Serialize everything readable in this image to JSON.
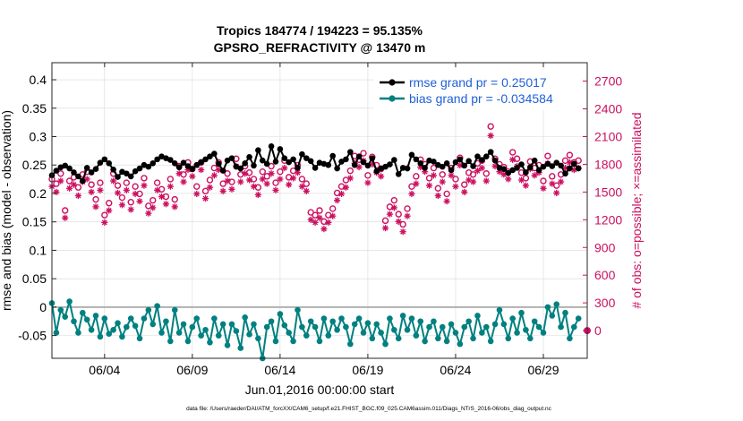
{
  "chart_data": {
    "type": "line",
    "title_line1": "Tropics 184774 / 194223 = 95.135%",
    "title_line2": "GPSRO_REFRACTIVITY @ 13470 m",
    "xlabel": "Jun.01,2016 00:00:00 start",
    "ylabel_left": "rmse and bias (model - observation)",
    "ylabel_right": "# of obs: o=possible; ×=assimilated",
    "footer": "data file: /Users/raeder/DAI/ATM_forcXX/CAM6_setup/f.e21.FHIST_BGC.f09_025.CAM6assim.011/Diags_NTrS_2016-06/obs_diag_output.nc",
    "xlim": [
      1,
      31.5
    ],
    "ylim_left": [
      -0.09,
      0.43
    ],
    "ylim_right": [
      -300,
      2900
    ],
    "x_ticks": [
      {
        "value": 4,
        "label": "06/04"
      },
      {
        "value": 9,
        "label": "06/09"
      },
      {
        "value": 14,
        "label": "06/14"
      },
      {
        "value": 19,
        "label": "06/19"
      },
      {
        "value": 24,
        "label": "06/24"
      },
      {
        "value": 29,
        "label": "06/29"
      }
    ],
    "left_ticks": [
      {
        "value": 0.4,
        "label": "0.4"
      },
      {
        "value": 0.35,
        "label": "0.35"
      },
      {
        "value": 0.3,
        "label": "0.3"
      },
      {
        "value": 0.25,
        "label": "0.25"
      },
      {
        "value": 0.2,
        "label": "0.2"
      },
      {
        "value": 0.15,
        "label": "0.15"
      },
      {
        "value": 0.1,
        "label": "0.1"
      },
      {
        "value": 0.05,
        "label": "0.05"
      },
      {
        "value": 0,
        "label": "0"
      },
      {
        "value": -0.05,
        "label": "-0.05"
      }
    ],
    "right_ticks": [
      {
        "value": 2700,
        "label": "2700"
      },
      {
        "value": 2400,
        "label": "2400"
      },
      {
        "value": 2100,
        "label": "2100"
      },
      {
        "value": 1800,
        "label": "1800"
      },
      {
        "value": 1500,
        "label": "1500"
      },
      {
        "value": 1200,
        "label": "1200"
      },
      {
        "value": 900,
        "label": "900"
      },
      {
        "value": 600,
        "label": "600"
      },
      {
        "value": 300,
        "label": "300"
      },
      {
        "value": 0,
        "label": "0"
      }
    ],
    "rmse_series": {
      "name": "rmse grand pr = 0.25017",
      "color": "#000000",
      "x": [
        1.0,
        1.25,
        1.5,
        1.75,
        2.0,
        2.25,
        2.5,
        2.75,
        3.0,
        3.25,
        3.5,
        3.75,
        4.0,
        4.25,
        4.5,
        4.75,
        5.0,
        5.25,
        5.5,
        5.75,
        6.0,
        6.25,
        6.5,
        6.75,
        7.0,
        7.25,
        7.5,
        7.75,
        8.0,
        8.25,
        8.5,
        8.75,
        9.0,
        9.25,
        9.5,
        9.75,
        10.0,
        10.25,
        10.5,
        10.75,
        11.0,
        11.25,
        11.5,
        11.75,
        12.0,
        12.25,
        12.5,
        12.75,
        13.0,
        13.25,
        13.5,
        13.75,
        14.0,
        14.25,
        14.5,
        14.75,
        15.0,
        15.25,
        15.5,
        15.75,
        16.0,
        16.25,
        16.5,
        16.75,
        17.0,
        17.25,
        17.5,
        17.75,
        18.0,
        18.25,
        18.5,
        18.75,
        19.0,
        19.25,
        19.5,
        19.75,
        20.0,
        20.25,
        20.5,
        20.75,
        21.0,
        21.25,
        21.5,
        21.75,
        22.0,
        22.25,
        22.5,
        22.75,
        23.0,
        23.25,
        23.5,
        23.75,
        24.0,
        24.25,
        24.5,
        24.75,
        25.0,
        25.25,
        25.5,
        25.75,
        26.0,
        26.25,
        26.5,
        26.75,
        27.0,
        27.25,
        27.5,
        27.75,
        28.0,
        28.25,
        28.5,
        28.75,
        29.0,
        29.25,
        29.5,
        29.75,
        30.0,
        30.25,
        30.5,
        30.75,
        31.0
      ],
      "values": [
        0.232,
        0.24,
        0.246,
        0.249,
        0.244,
        0.237,
        0.23,
        0.222,
        0.245,
        0.237,
        0.243,
        0.254,
        0.26,
        0.253,
        0.242,
        0.229,
        0.238,
        0.235,
        0.23,
        0.239,
        0.244,
        0.25,
        0.247,
        0.253,
        0.26,
        0.265,
        0.262,
        0.259,
        0.253,
        0.246,
        0.254,
        0.248,
        0.243,
        0.25,
        0.255,
        0.26,
        0.265,
        0.27,
        0.252,
        0.24,
        0.258,
        0.262,
        0.247,
        0.244,
        0.253,
        0.264,
        0.249,
        0.276,
        0.258,
        0.252,
        0.283,
        0.256,
        0.278,
        0.262,
        0.255,
        0.26,
        0.245,
        0.269,
        0.262,
        0.257,
        0.245,
        0.254,
        0.252,
        0.25,
        0.266,
        0.244,
        0.256,
        0.26,
        0.273,
        0.25,
        0.265,
        0.255,
        0.249,
        0.262,
        0.239,
        0.244,
        0.247,
        0.251,
        0.259,
        0.234,
        0.245,
        0.244,
        0.268,
        0.26,
        0.253,
        0.245,
        0.258,
        0.256,
        0.25,
        0.247,
        0.253,
        0.241,
        0.255,
        0.26,
        0.249,
        0.257,
        0.248,
        0.265,
        0.259,
        0.265,
        0.273,
        0.258,
        0.245,
        0.243,
        0.236,
        0.241,
        0.245,
        0.251,
        0.237,
        0.246,
        0.258,
        0.241,
        0.247,
        0.252,
        0.248,
        0.254,
        0.249,
        0.235,
        0.244,
        0.252,
        0.244
      ]
    },
    "bias_series": {
      "name": "bias grand pr = -0.034584",
      "color": "#008080",
      "x": [
        1.0,
        1.25,
        1.5,
        1.75,
        2.0,
        2.25,
        2.5,
        2.75,
        3.0,
        3.25,
        3.5,
        3.75,
        4.0,
        4.25,
        4.5,
        4.75,
        5.0,
        5.25,
        5.5,
        5.75,
        6.0,
        6.25,
        6.5,
        6.75,
        7.0,
        7.25,
        7.5,
        7.75,
        8.0,
        8.25,
        8.5,
        8.75,
        9.0,
        9.25,
        9.5,
        9.75,
        10.0,
        10.25,
        10.5,
        10.75,
        11.0,
        11.25,
        11.5,
        11.75,
        12.0,
        12.25,
        12.5,
        12.75,
        13.0,
        13.25,
        13.5,
        13.75,
        14.0,
        14.25,
        14.5,
        14.75,
        15.0,
        15.25,
        15.5,
        15.75,
        16.0,
        16.25,
        16.5,
        16.75,
        17.0,
        17.25,
        17.5,
        17.75,
        18.0,
        18.25,
        18.5,
        18.75,
        19.0,
        19.25,
        19.5,
        19.75,
        20.0,
        20.25,
        20.5,
        20.75,
        21.0,
        21.25,
        21.5,
        21.75,
        22.0,
        22.25,
        22.5,
        22.75,
        23.0,
        23.25,
        23.5,
        23.75,
        24.0,
        24.25,
        24.5,
        24.75,
        25.0,
        25.25,
        25.5,
        25.75,
        26.0,
        26.25,
        26.5,
        26.75,
        27.0,
        27.25,
        27.5,
        27.75,
        28.0,
        28.25,
        28.5,
        28.75,
        29.0,
        29.25,
        29.5,
        29.75,
        30.0,
        30.25,
        30.5,
        30.75,
        31.0
      ],
      "values": [
        0.007,
        -0.045,
        -0.005,
        -0.017,
        0.01,
        -0.025,
        -0.045,
        -0.01,
        -0.022,
        -0.04,
        -0.015,
        -0.052,
        -0.02,
        -0.047,
        -0.04,
        -0.028,
        -0.052,
        -0.035,
        -0.02,
        -0.033,
        -0.055,
        -0.02,
        -0.005,
        -0.03,
        0.002,
        -0.045,
        -0.025,
        -0.06,
        -0.005,
        -0.045,
        -0.03,
        -0.06,
        -0.035,
        -0.02,
        -0.05,
        -0.04,
        -0.062,
        -0.02,
        -0.05,
        -0.03,
        -0.067,
        -0.03,
        -0.042,
        -0.072,
        -0.018,
        -0.048,
        -0.03,
        -0.055,
        -0.09,
        -0.035,
        -0.025,
        -0.06,
        -0.012,
        -0.032,
        -0.045,
        -0.06,
        -0.005,
        -0.035,
        -0.05,
        -0.025,
        -0.035,
        -0.06,
        -0.02,
        -0.05,
        -0.025,
        -0.04,
        -0.02,
        -0.035,
        -0.065,
        -0.03,
        -0.02,
        -0.045,
        -0.028,
        -0.055,
        -0.03,
        -0.045,
        -0.065,
        -0.02,
        -0.04,
        -0.055,
        -0.015,
        -0.04,
        -0.02,
        -0.05,
        -0.025,
        -0.06,
        -0.035,
        -0.025,
        -0.055,
        -0.035,
        -0.06,
        -0.03,
        -0.045,
        -0.065,
        -0.035,
        -0.025,
        -0.055,
        -0.015,
        -0.045,
        -0.035,
        -0.06,
        -0.03,
        -0.005,
        -0.03,
        -0.055,
        -0.02,
        -0.045,
        -0.01,
        -0.04,
        -0.055,
        -0.025,
        -0.035,
        -0.045,
        0.0,
        -0.015,
        0.005,
        -0.035,
        -0.01,
        -0.055,
        -0.035,
        -0.02
      ]
    },
    "possible_series": {
      "name": "possible",
      "marker": "o",
      "color": "#cc1060",
      "x": [
        1.0,
        1.25,
        1.5,
        1.75,
        2.0,
        2.25,
        2.5,
        2.75,
        3.0,
        3.25,
        3.5,
        3.75,
        4.0,
        4.25,
        4.5,
        4.75,
        5.0,
        5.25,
        5.5,
        5.75,
        6.0,
        6.25,
        6.5,
        6.75,
        7.0,
        7.25,
        7.5,
        7.75,
        8.0,
        8.25,
        8.5,
        8.75,
        9.0,
        9.25,
        9.5,
        9.75,
        10.0,
        10.25,
        10.5,
        10.75,
        11.0,
        11.25,
        11.5,
        11.75,
        12.0,
        12.25,
        12.5,
        12.75,
        13.0,
        13.25,
        13.5,
        13.75,
        14.0,
        14.25,
        14.5,
        14.75,
        15.0,
        15.25,
        15.5,
        15.75,
        16.0,
        16.25,
        16.5,
        16.75,
        17.0,
        17.25,
        17.5,
        17.75,
        18.0,
        18.25,
        18.5,
        18.75,
        19.0,
        19.25,
        19.5,
        19.75,
        20.0,
        20.25,
        20.5,
        20.75,
        21.0,
        21.25,
        21.5,
        21.75,
        22.0,
        22.25,
        22.5,
        22.75,
        23.0,
        23.25,
        23.5,
        23.75,
        24.0,
        24.25,
        24.5,
        24.75,
        25.0,
        25.25,
        25.5,
        25.75,
        26.0,
        26.25,
        26.5,
        26.75,
        27.0,
        27.25,
        27.5,
        27.75,
        28.0,
        28.25,
        28.5,
        28.75,
        29.0,
        29.25,
        29.5,
        29.75,
        30.0,
        30.25,
        30.5,
        30.75,
        31.0
      ],
      "values": [
        1640,
        1590,
        1700,
        1300,
        1620,
        1660,
        1550,
        1690,
        1720,
        1580,
        1420,
        1600,
        1250,
        1380,
        1700,
        1570,
        1440,
        1600,
        1390,
        1560,
        1480,
        1650,
        1350,
        1410,
        1600,
        1530,
        1450,
        1640,
        1420,
        1780,
        1690,
        1820,
        1750,
        1560,
        1820,
        1510,
        1630,
        1760,
        1820,
        1590,
        1700,
        1610,
        1860,
        1690,
        1780,
        1710,
        1640,
        1550,
        1720,
        1670,
        1780,
        1600,
        1720,
        1840,
        1660,
        1730,
        1790,
        1640,
        1590,
        1280,
        1250,
        1300,
        1180,
        1250,
        1320,
        1490,
        1560,
        1630,
        1730,
        1890,
        1850,
        1920,
        1680,
        1880,
        1790,
        1750,
        1190,
        1340,
        1410,
        1260,
        1150,
        1320,
        1560,
        1670,
        1850,
        1800,
        1650,
        1760,
        1540,
        1690,
        1480,
        1760,
        1640,
        1870,
        1580,
        1710,
        1690,
        1810,
        1840,
        1700,
        2210,
        1860,
        1800,
        1770,
        1720,
        1930,
        1860,
        1710,
        1650,
        1830,
        1760,
        1790,
        1620,
        1890,
        1670,
        1570,
        1690,
        1840,
        1900,
        1820,
        1840
      ]
    },
    "assimilated_series": {
      "name": "assimilated",
      "marker": "*",
      "color": "#cc1060",
      "x": [
        1.0,
        1.25,
        1.5,
        1.75,
        2.0,
        2.25,
        2.5,
        2.75,
        3.0,
        3.25,
        3.5,
        3.75,
        4.0,
        4.25,
        4.5,
        4.75,
        5.0,
        5.25,
        5.5,
        5.75,
        6.0,
        6.25,
        6.5,
        6.75,
        7.0,
        7.25,
        7.5,
        7.75,
        8.0,
        8.25,
        8.5,
        8.75,
        9.0,
        9.25,
        9.5,
        9.75,
        10.0,
        10.25,
        10.5,
        10.75,
        11.0,
        11.25,
        11.5,
        11.75,
        12.0,
        12.25,
        12.5,
        12.75,
        13.0,
        13.25,
        13.5,
        13.75,
        14.0,
        14.25,
        14.5,
        14.75,
        15.0,
        15.25,
        15.5,
        15.75,
        16.0,
        16.25,
        16.5,
        16.75,
        17.0,
        17.25,
        17.5,
        17.75,
        18.0,
        18.25,
        18.5,
        18.75,
        19.0,
        19.25,
        19.5,
        19.75,
        20.0,
        20.25,
        20.5,
        20.75,
        21.0,
        21.25,
        21.5,
        21.75,
        22.0,
        22.25,
        22.5,
        22.75,
        23.0,
        23.25,
        23.5,
        23.75,
        24.0,
        24.25,
        24.5,
        24.75,
        25.0,
        25.25,
        25.5,
        25.75,
        26.0,
        26.25,
        26.5,
        26.75,
        27.0,
        27.25,
        27.5,
        27.75,
        28.0,
        28.25,
        28.5,
        28.75,
        29.0,
        29.25,
        29.5,
        29.75,
        30.0,
        30.25,
        30.5,
        30.75,
        31.0
      ],
      "values": [
        1560,
        1500,
        1620,
        1220,
        1540,
        1580,
        1460,
        1610,
        1640,
        1500,
        1340,
        1520,
        1170,
        1300,
        1620,
        1490,
        1360,
        1520,
        1310,
        1480,
        1400,
        1570,
        1270,
        1330,
        1520,
        1450,
        1370,
        1560,
        1340,
        1700,
        1610,
        1740,
        1670,
        1480,
        1740,
        1430,
        1550,
        1680,
        1740,
        1510,
        1620,
        1530,
        1780,
        1610,
        1700,
        1630,
        1560,
        1470,
        1640,
        1590,
        1700,
        1520,
        1640,
        1760,
        1580,
        1650,
        1710,
        1560,
        1510,
        1200,
        1170,
        1220,
        1100,
        1170,
        1240,
        1410,
        1480,
        1550,
        1650,
        1810,
        1770,
        1840,
        1600,
        1800,
        1710,
        1670,
        1110,
        1260,
        1330,
        1180,
        1070,
        1240,
        1480,
        1590,
        1770,
        1720,
        1570,
        1680,
        1460,
        1610,
        1400,
        1680,
        1560,
        1790,
        1500,
        1630,
        1610,
        1730,
        1760,
        1620,
        2110,
        1780,
        1720,
        1690,
        1640,
        1850,
        1780,
        1630,
        1570,
        1750,
        1680,
        1710,
        1540,
        1810,
        1590,
        1490,
        1610,
        1760,
        1820,
        1740,
        1760
      ]
    },
    "legend": {
      "placement": "top-right",
      "rmse_label": "rmse grand pr = 0.25017",
      "bias_label": "bias grand pr = -0.034584",
      "text_color": "#1f5fd8"
    },
    "colors": {
      "rmse": "#000000",
      "bias": "#008080",
      "obs_count": "#cc1060",
      "zero_line": "#b0b0b0",
      "legend_text": "#1f5fd8"
    },
    "grid": true
  }
}
